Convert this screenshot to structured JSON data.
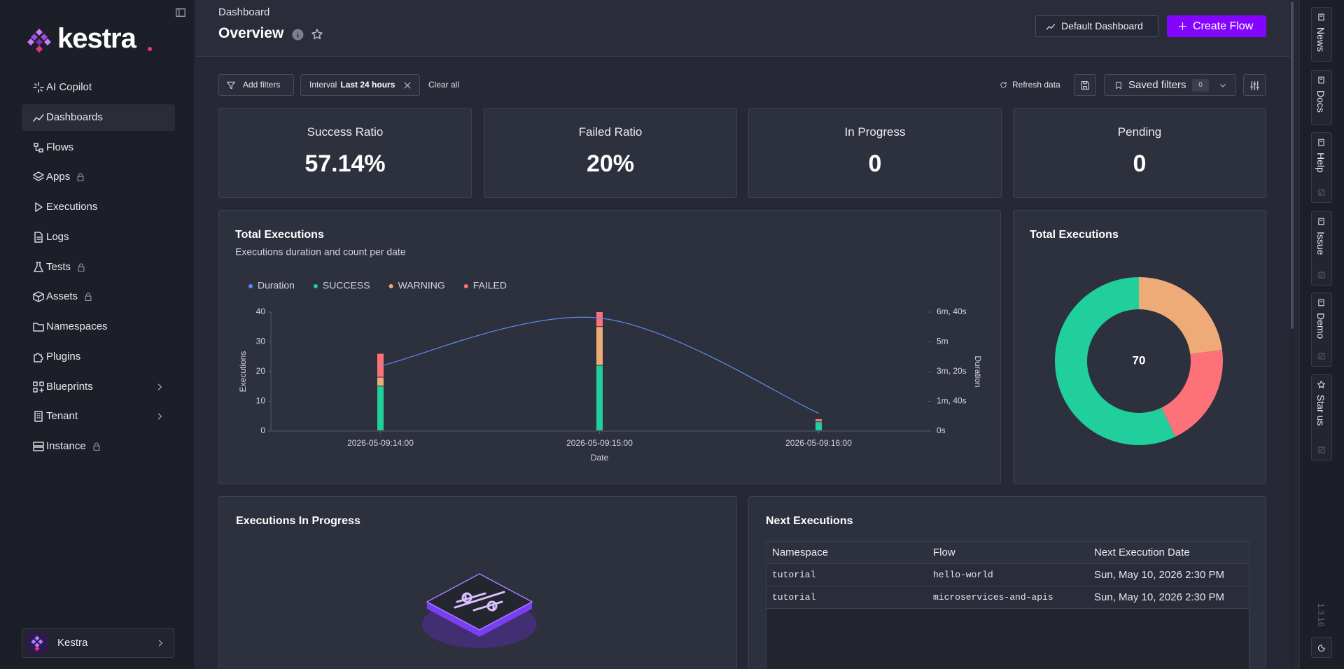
{
  "sidebar": {
    "brand": "kestra",
    "nav": [
      {
        "label": "AI Copilot"
      },
      {
        "label": "Dashboards",
        "active": true
      },
      {
        "label": "Flows"
      },
      {
        "label": "Apps",
        "locked": true
      },
      {
        "label": "Executions"
      },
      {
        "label": "Logs"
      },
      {
        "label": "Tests",
        "locked": true
      },
      {
        "label": "Assets",
        "locked": true
      },
      {
        "label": "Namespaces"
      },
      {
        "label": "Plugins"
      },
      {
        "label": "Blueprints",
        "expand": true
      },
      {
        "label": "Tenant",
        "expand": true
      },
      {
        "label": "Instance",
        "locked": true
      }
    ],
    "account": "Kestra"
  },
  "header": {
    "breadcrumb": "Dashboard",
    "title": "Overview",
    "dashboard_button": "Default Dashboard",
    "create_button": "Create Flow"
  },
  "filters": {
    "add": "Add filters",
    "interval_label": "Interval",
    "interval_value": "Last 24 hours",
    "clear": "Clear all",
    "refresh": "Refresh data",
    "saved": "Saved filters",
    "saved_count": 0
  },
  "kpis": [
    {
      "label": "Success Ratio",
      "value": "57.14%"
    },
    {
      "label": "Failed Ratio",
      "value": "20%"
    },
    {
      "label": "In Progress",
      "value": "0"
    },
    {
      "label": "Pending",
      "value": "0"
    }
  ],
  "chart_data": [
    {
      "type": "bar",
      "stacked": true,
      "title": "Total Executions",
      "subtitle": "Executions duration and count per date",
      "x_label": "Date",
      "y_label": "Executions",
      "y2_label": "Duration",
      "categories": [
        "2026-05-09:14:00",
        "2026-05-09:15:00",
        "2026-05-09:16:00"
      ],
      "series": [
        {
          "name": "Duration",
          "type": "line",
          "axis": "y2",
          "color": "#5b8def",
          "values": [
            219,
            380,
            60
          ]
        },
        {
          "name": "SUCCESS",
          "color": "#20cf9b",
          "values": [
            15,
            22,
            3
          ]
        },
        {
          "name": "WARNING",
          "color": "#eeaa77",
          "values": [
            3,
            13,
            0
          ]
        },
        {
          "name": "FAILED",
          "color": "#fd7178",
          "values": [
            8,
            5,
            1
          ]
        }
      ],
      "ylim": [
        0,
        40
      ],
      "yticks": [
        0,
        10,
        20,
        30,
        40
      ],
      "y2lim": [
        0,
        400
      ],
      "y2ticks": [
        {
          "value": 0,
          "label": "0s"
        },
        {
          "value": 100,
          "label": "1m, 40s"
        },
        {
          "value": 200,
          "label": "3m, 20s"
        },
        {
          "value": 300,
          "label": "5m"
        },
        {
          "value": 400,
          "label": "6m, 40s"
        }
      ],
      "legend": "top-left"
    },
    {
      "type": "pie",
      "donut": true,
      "title": "Total Executions",
      "total": 70,
      "values": [
        16,
        14,
        40
      ],
      "colors": [
        "#eeaa77",
        "#fd7178",
        "#20cf9b"
      ]
    }
  ],
  "in_progress": {
    "title": "Executions In Progress"
  },
  "next_executions": {
    "title": "Next Executions",
    "columns": [
      "Namespace",
      "Flow",
      "Next Execution Date"
    ],
    "rows": [
      [
        "tutorial",
        "hello-world",
        "Sun, May 10, 2026 2:30 PM"
      ],
      [
        "tutorial",
        "microservices-and-apis",
        "Sun, May 10, 2026 2:30 PM"
      ]
    ]
  },
  "right_rail": {
    "links": [
      "News",
      "Docs",
      "Help",
      "Issue",
      "Demo",
      "Star us"
    ],
    "version": "1.3.16"
  }
}
